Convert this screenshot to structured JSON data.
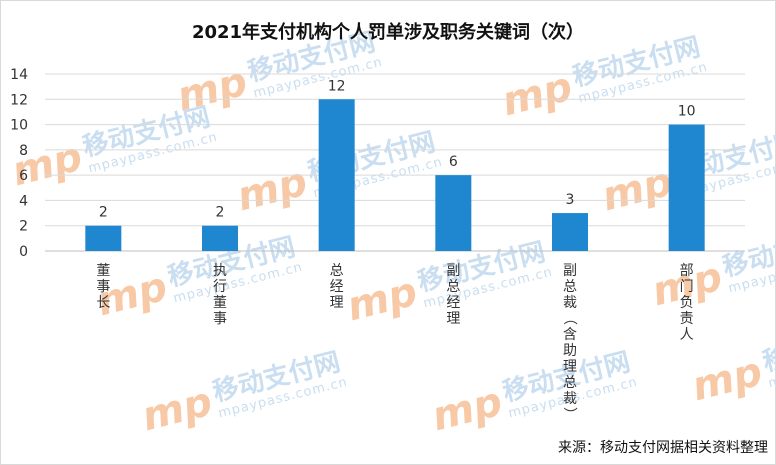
{
  "chart_data": {
    "type": "bar",
    "title": "2021年支付机构个人罚单涉及职务关键词（次）",
    "categories": [
      "董事长",
      "执行董事",
      "总经理",
      "副总经理",
      "副总裁（含助理总裁）",
      "部门负责人"
    ],
    "values": [
      2,
      2,
      12,
      6,
      3,
      10
    ],
    "ylim": [
      0,
      14
    ],
    "yticks": [
      0,
      2,
      4,
      6,
      8,
      10,
      12,
      14
    ],
    "grid": true,
    "bar_color": "#1f86d0",
    "data_labels": true
  },
  "source_note": "来源：移动支付网据相关资料整理",
  "watermark": {
    "logo_text": "mp",
    "name": "移动支付网",
    "url": "mpaypass.com.cn",
    "colors": {
      "logo": "#f7c9a6",
      "text": "#c9def0"
    }
  }
}
